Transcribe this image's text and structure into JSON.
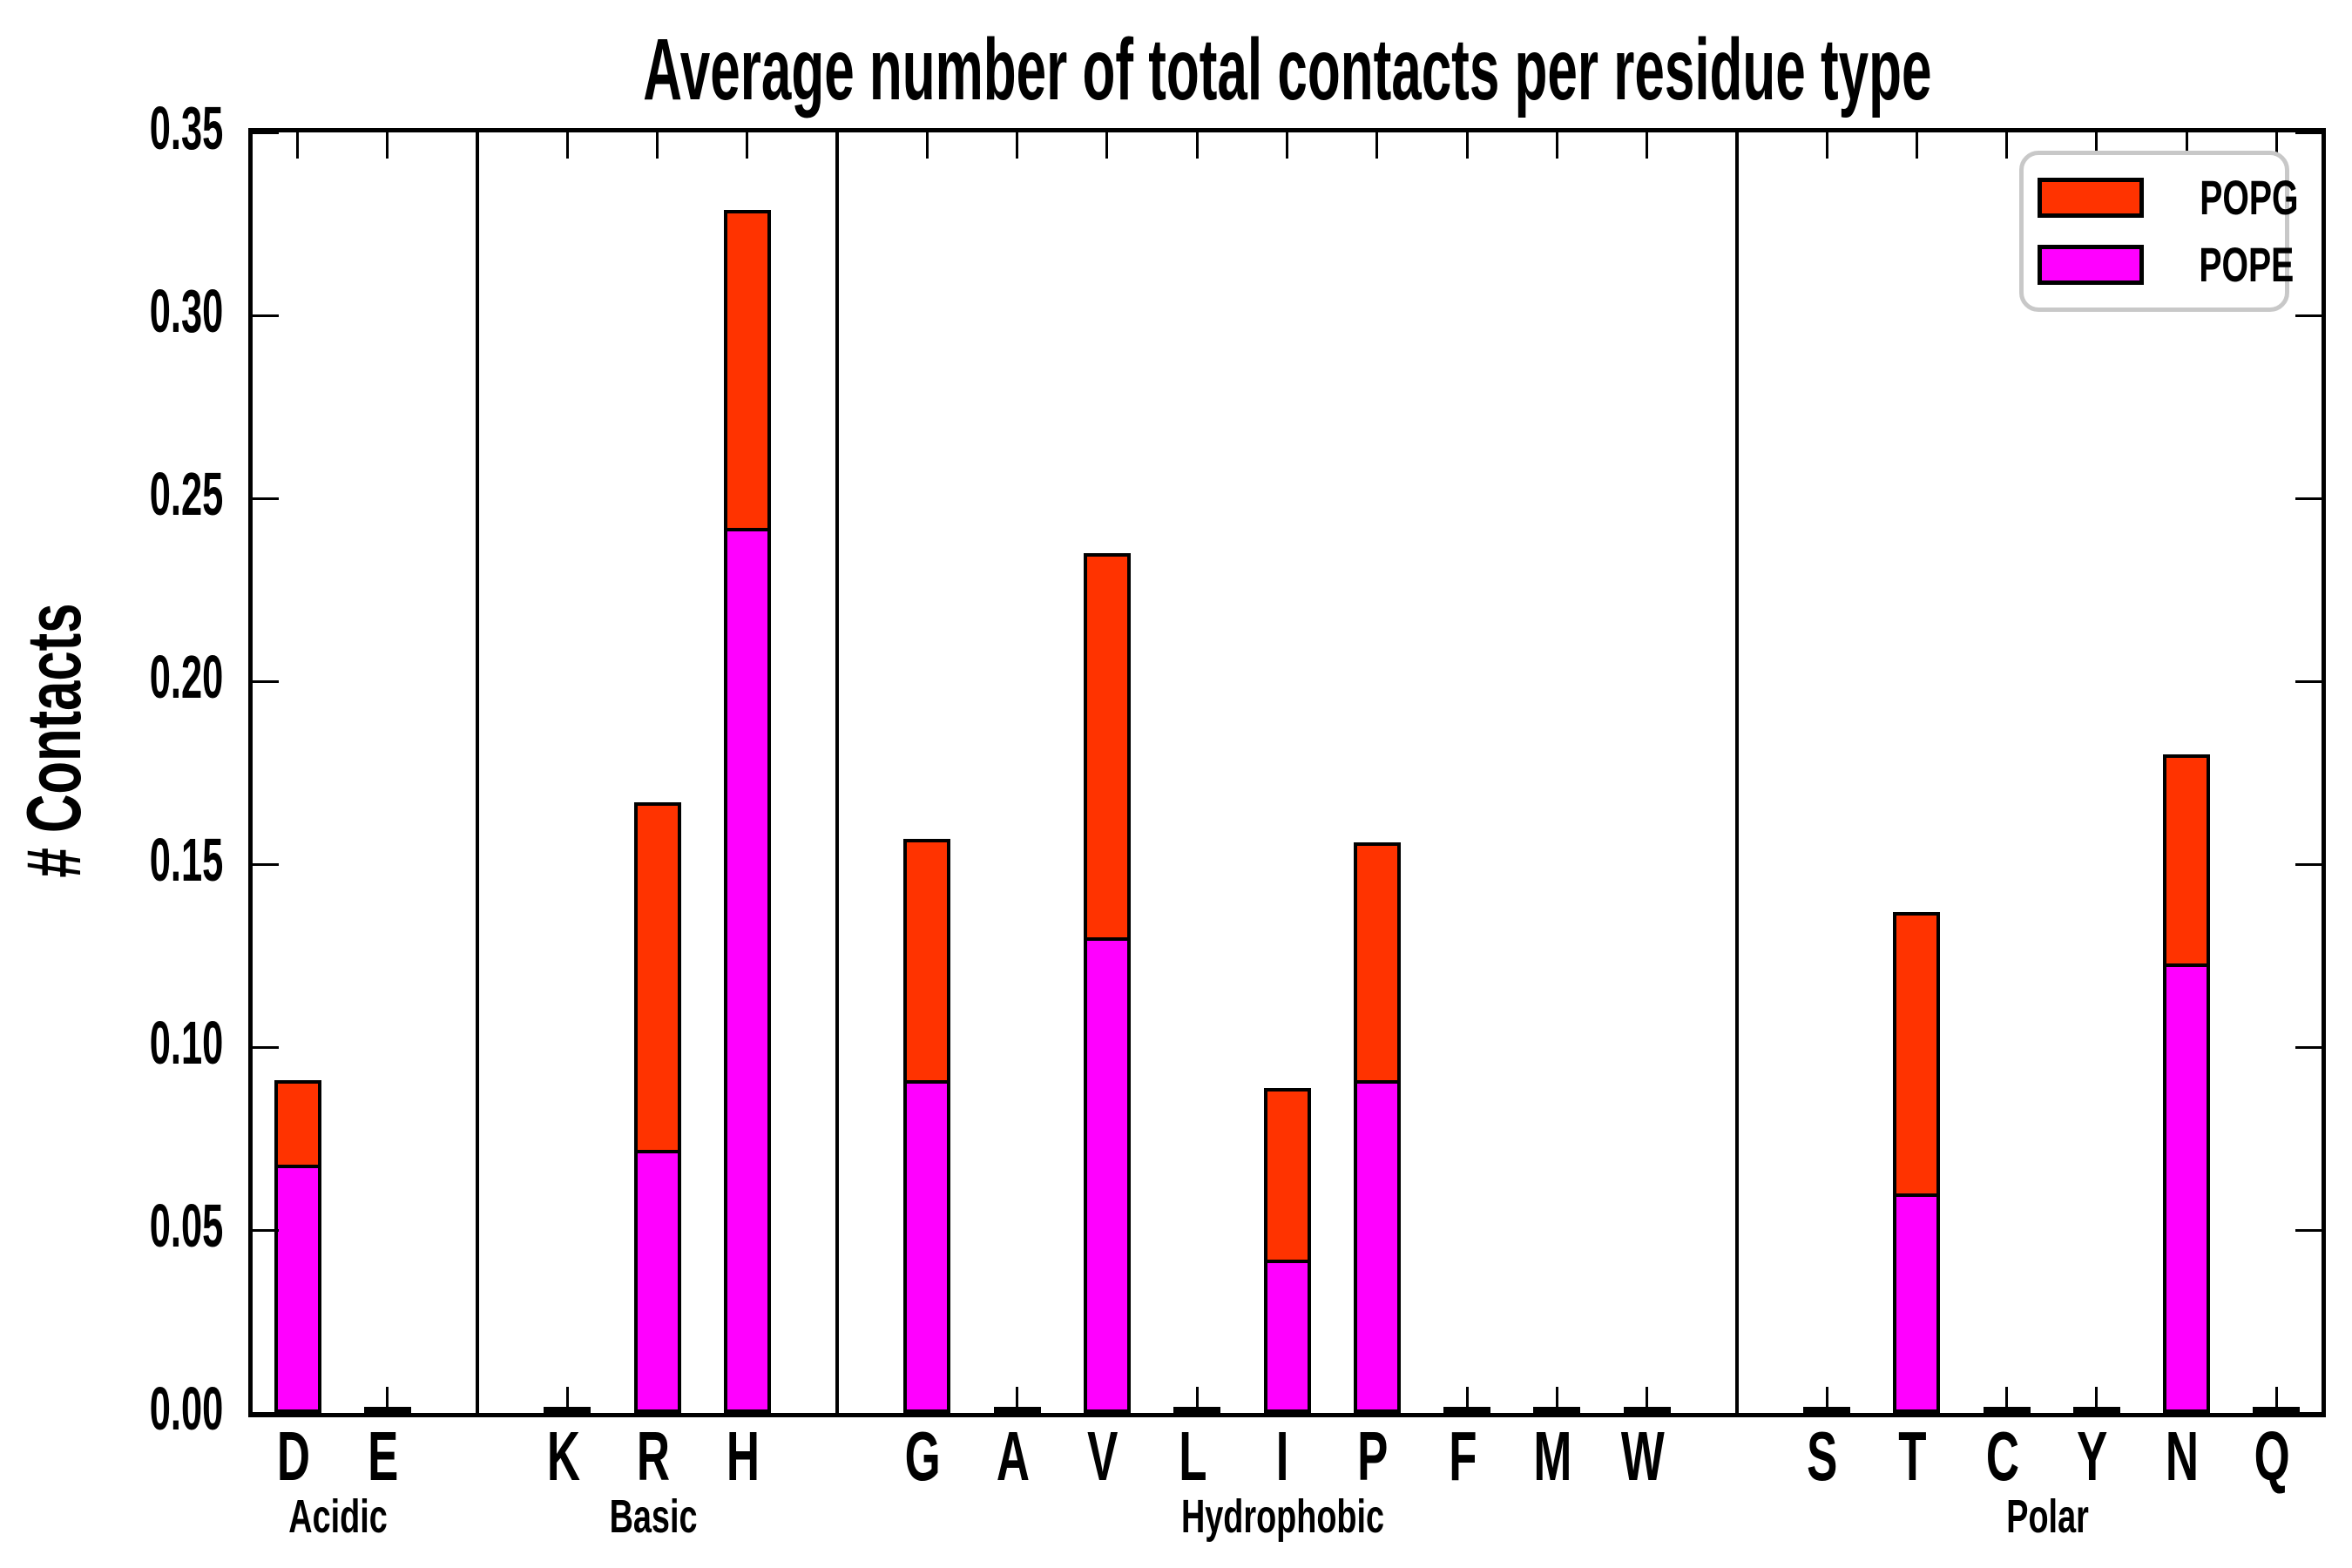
{
  "figure": {
    "title": "Average number of total contacts per residue type",
    "ylabel": "# Contacts"
  },
  "legend": {
    "items": [
      {
        "label": "POPG",
        "color": "#ff3300"
      },
      {
        "label": "POPE",
        "color": "#ff00ff"
      }
    ]
  },
  "chart_data": {
    "type": "bar",
    "stacked": true,
    "title": "Average number of total contacts per residue type",
    "xlabel": "",
    "ylabel": "# Contacts",
    "ylim": [
      0,
      0.35
    ],
    "ytick_step": 0.05,
    "ytick_labels": [
      "0.00",
      "0.05",
      "0.10",
      "0.15",
      "0.20",
      "0.25",
      "0.30",
      "0.35"
    ],
    "grid": false,
    "legend_position": "upper right",
    "series": [
      {
        "name": "POPG",
        "color": "#ff3300"
      },
      {
        "name": "POPE",
        "color": "#ff00ff"
      }
    ],
    "groups": [
      {
        "label": "Acidic",
        "categories": [
          "D",
          "E"
        ],
        "pope": [
          0.066,
          0.001
        ],
        "popg": [
          0.023,
          0.001
        ]
      },
      {
        "label": "Basic",
        "categories": [
          "K",
          "R",
          "H"
        ],
        "pope": [
          0.001,
          0.07,
          0.24
        ],
        "popg": [
          0.001,
          0.095,
          0.087
        ]
      },
      {
        "label": "Hydrophobic",
        "categories": [
          "G",
          "A",
          "V",
          "L",
          "I",
          "P",
          "F",
          "M",
          "W"
        ],
        "pope": [
          0.089,
          0.001,
          0.128,
          0.001,
          0.04,
          0.089,
          0.001,
          0.001,
          0.001
        ],
        "popg": [
          0.066,
          0.001,
          0.105,
          0.001,
          0.047,
          0.065,
          0.001,
          0.001,
          0.001
        ]
      },
      {
        "label": "Polar",
        "categories": [
          "S",
          "T",
          "C",
          "Y",
          "N",
          "Q"
        ],
        "pope": [
          0.001,
          0.058,
          0.001,
          0.001,
          0.121,
          0.001
        ],
        "popg": [
          0.001,
          0.077,
          0.001,
          0.001,
          0.057,
          0.001
        ]
      }
    ]
  }
}
